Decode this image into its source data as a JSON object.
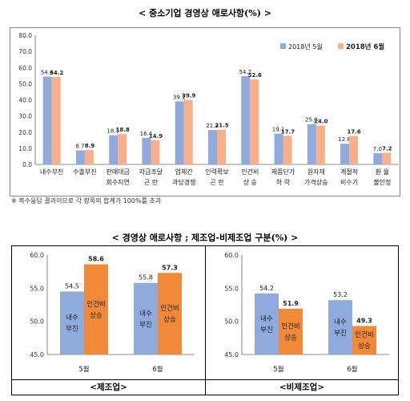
{
  "titles": {
    "top": "< 중소기업 경영상 애로사항(%) >",
    "bottom": "< 경영상 애로사항 ; 제조업-비제조업 구분(%) >",
    "footnote": "※ 복수응답 결과이므로 각 항목의 합계가 100%를 초과"
  },
  "colors": {
    "blue": "#8faadc",
    "orange_light": "#f8b08c",
    "orange": "#f08a38"
  },
  "chart_data": [
    {
      "type": "bar",
      "title": "< 중소기업 경영상 애로사항(%) >",
      "categories": [
        [
          "내수부진"
        ],
        [
          "수출부진"
        ],
        [
          "판매대금",
          "회수지연"
        ],
        [
          "자금조달",
          "곤 란"
        ],
        [
          "업체간",
          "과당경쟁"
        ],
        [
          "인력확보",
          "곤 란"
        ],
        [
          "인건비",
          "상 승"
        ],
        [
          "제품단가",
          "하 락"
        ],
        [
          "원자재",
          "가격상승"
        ],
        [
          "계절적",
          "비수기"
        ],
        [
          "환 율",
          "불안정"
        ]
      ],
      "series": [
        {
          "name": "2018년 5월",
          "values": [
            54.4,
            8.7,
            18.1,
            16.4,
            39.1,
            21.3,
            54.7,
            19.1,
            25.0,
            12.8,
            7.0
          ],
          "labels": [
            "54.4",
            "8.7",
            "18.1",
            "16.4",
            "39.1",
            "21.3",
            "54.7",
            "19.1",
            "25.0",
            "12.8",
            "7.0"
          ]
        },
        {
          "name": "2018년 6월",
          "values": [
            54.2,
            8.9,
            18.8,
            14.9,
            39.9,
            21.5,
            52.6,
            17.7,
            24.0,
            17.6,
            7.2
          ],
          "labels": [
            "54.2",
            "8.9",
            "18.8",
            "14.9",
            "39.9",
            "21.5",
            "52.6",
            "17.7",
            "24.0",
            "17.6",
            "7.2"
          ]
        }
      ],
      "ylim": [
        0,
        80
      ],
      "yticks": [
        "0.0",
        "10.0",
        "20.0",
        "30.0",
        "40.0",
        "50.0",
        "60.0",
        "70.0",
        "80.0"
      ],
      "legend": "top-right",
      "grid": false
    },
    {
      "type": "bar",
      "panel_label": "<제조업>",
      "categories": [
        "5월",
        "6월"
      ],
      "series": [
        {
          "name": "내수 부진",
          "values": [
            54.5,
            55.8
          ],
          "labels": [
            "54.5",
            "55.8"
          ]
        },
        {
          "name": "인건비 상승",
          "values": [
            58.6,
            57.3
          ],
          "labels": [
            "58.6",
            "57.3"
          ]
        }
      ],
      "ylim": [
        45,
        60
      ],
      "yticks": [
        "45.0",
        "50.0",
        "55.0",
        "60.0"
      ],
      "grid": false
    },
    {
      "type": "bar",
      "panel_label": "<비제조업>",
      "categories": [
        "5월",
        "6월"
      ],
      "series": [
        {
          "name": "내수 부진",
          "values": [
            54.2,
            53.2
          ],
          "labels": [
            "54.2",
            "53.2"
          ]
        },
        {
          "name": "인건비 상승",
          "values": [
            51.9,
            49.3
          ],
          "labels": [
            "51.9",
            "49.3"
          ]
        }
      ],
      "ylim": [
        45,
        60
      ],
      "yticks": [
        "45.0",
        "50.0",
        "55.0",
        "60.0"
      ],
      "grid": false
    }
  ]
}
